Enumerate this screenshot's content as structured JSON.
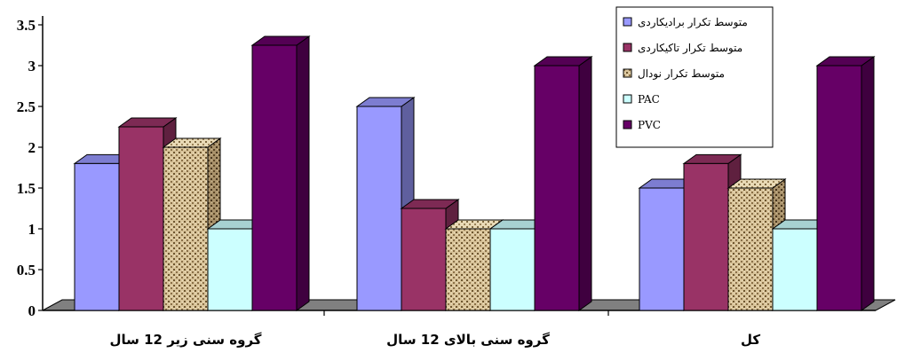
{
  "chart_data": {
    "type": "bar",
    "categories": [
      "گروه سنی زیر 12 سال",
      "گروه سنی بالای 12 سال",
      "کل"
    ],
    "series": [
      {
        "name": "متوسط تکرار برادیکاردی",
        "values": [
          1.8,
          2.5,
          1.5
        ],
        "color": "#9999ff"
      },
      {
        "name": "متوسط تکرار تاکیکاردی",
        "values": [
          2.25,
          1.25,
          1.8
        ],
        "color": "#993366"
      },
      {
        "name": "متوسط تکرار نودال",
        "values": [
          2.0,
          1.0,
          1.5
        ],
        "color": "#c8b48c",
        "pattern": "textured"
      },
      {
        "name": "PAC",
        "values": [
          1.0,
          1.0,
          1.0
        ],
        "color": "#ccffff"
      },
      {
        "name": "PVC",
        "values": [
          3.25,
          3.0,
          3.0
        ],
        "color": "#660066"
      }
    ],
    "yticks": [
      "0",
      "0.5",
      "1",
      "1.5",
      "2",
      "2.5",
      "3",
      "3.5"
    ],
    "ylim": [
      0,
      3.5
    ],
    "legend_position": "top-right",
    "grid": false,
    "style": "3d"
  }
}
